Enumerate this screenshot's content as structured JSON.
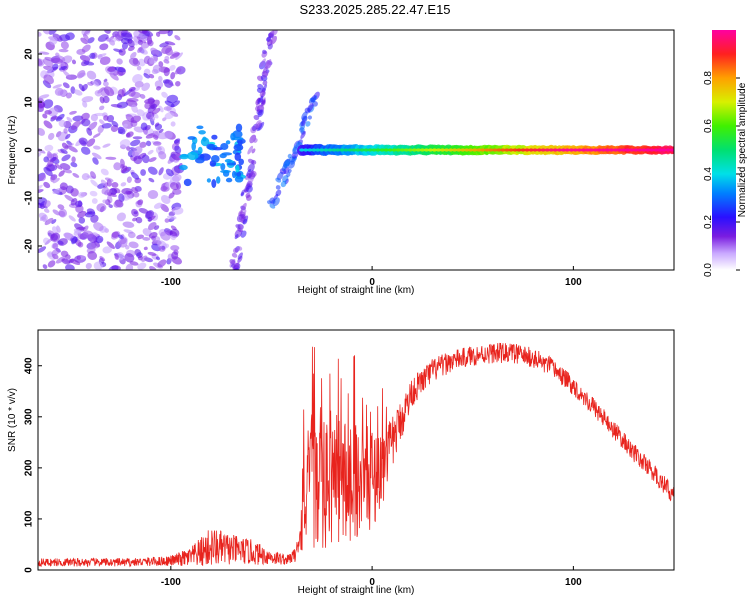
{
  "title": "S233.2025.285.22.47.E15",
  "colors": {
    "snr_line": "#e8231d",
    "axis": "#000000",
    "background": "#ffffff"
  },
  "chart_data": [
    {
      "type": "heatmap",
      "name": "spectrogram",
      "xlabel": "Height of straight line (km)",
      "ylabel": "Frequency (Hz)",
      "xlim": [
        -166,
        150
      ],
      "ylim": [
        -25,
        25
      ],
      "xticks": [
        -100,
        0,
        100
      ],
      "yticks": [
        -20,
        -10,
        0,
        10,
        20
      ],
      "xtick_labels": [
        "-100",
        "0",
        "100"
      ],
      "ytick_labels": [
        "-20",
        "-10",
        "0",
        "10",
        "20"
      ],
      "colorbar": {
        "label": "Normalized spectral amplitude",
        "range": [
          0,
          1
        ],
        "ticks": [
          0.0,
          0.2,
          0.4,
          0.6,
          0.8
        ],
        "tick_labels": [
          "0.0",
          "0.2",
          "0.4",
          "0.6",
          "0.8"
        ]
      },
      "features": [
        {
          "description": "scattered low-amplitude blobs",
          "x_range": [
            -166,
            -95
          ],
          "y_range": [
            -25,
            25
          ],
          "amplitude": 0.12
        },
        {
          "description": "diagonal streak",
          "x_range": [
            -68,
            -50
          ],
          "y_range": [
            -25,
            25
          ],
          "amplitude": 0.1
        },
        {
          "description": "diagonal streak",
          "x_range": [
            -50,
            -27
          ],
          "y_range": [
            -12,
            12
          ],
          "amplitude": 0.2
        },
        {
          "description": "cluster",
          "x_range": [
            -95,
            -65
          ],
          "y_range": [
            -7,
            5
          ],
          "amplitude": 0.25
        },
        {
          "description": "carrier line at 0 Hz",
          "x_range": [
            -35,
            150
          ],
          "y_range": [
            -1,
            1
          ],
          "amplitude_start": 0.2,
          "amplitude_end": 0.95
        }
      ]
    },
    {
      "type": "line",
      "name": "snr",
      "xlabel": "Height of straight line (km)",
      "ylabel": "SNR (10 * v/v)",
      "xlim": [
        -166,
        150
      ],
      "ylim": [
        0,
        470
      ],
      "xticks": [
        -100,
        0,
        100
      ],
      "yticks": [
        0,
        100,
        200,
        300,
        400
      ],
      "xtick_labels": [
        "-100",
        "0",
        "100"
      ],
      "ytick_labels": [
        "0",
        "100",
        "200",
        "300",
        "400"
      ],
      "series": [
        {
          "name": "SNR",
          "envelope_x": [
            -166,
            -120,
            -100,
            -90,
            -80,
            -70,
            -60,
            -50,
            -42,
            -38,
            -35,
            -30,
            -25,
            -20,
            -15,
            -10,
            -5,
            0,
            5,
            10,
            15,
            20,
            25,
            30,
            40,
            50,
            60,
            70,
            80,
            90,
            100,
            110,
            120,
            130,
            140,
            150
          ],
          "envelope_mean": [
            15,
            15,
            18,
            25,
            45,
            40,
            35,
            25,
            20,
            30,
            120,
            180,
            150,
            190,
            170,
            180,
            175,
            180,
            200,
            250,
            300,
            350,
            370,
            390,
            410,
            420,
            425,
            425,
            415,
            395,
            360,
            320,
            275,
            230,
            190,
            145
          ],
          "noise_amplitude": [
            8,
            8,
            10,
            20,
            40,
            30,
            25,
            15,
            10,
            15,
            100,
            130,
            130,
            140,
            130,
            120,
            110,
            100,
            80,
            50,
            40,
            30,
            25,
            25,
            20,
            20,
            20,
            20,
            20,
            20,
            18,
            18,
            18,
            18,
            18,
            18
          ]
        }
      ]
    }
  ]
}
